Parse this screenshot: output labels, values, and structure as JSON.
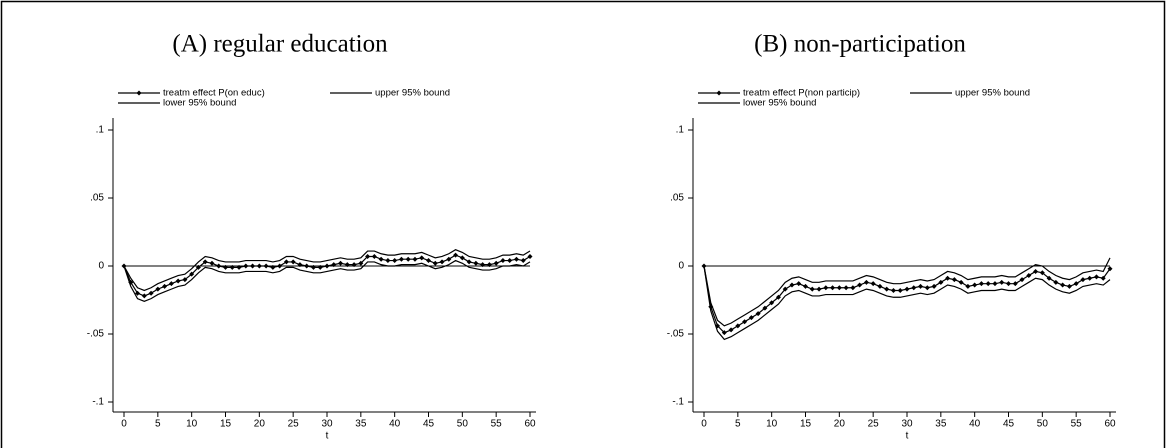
{
  "chart_data": [
    {
      "type": "line",
      "title": "(A) regular education",
      "xlabel": "t",
      "x": [
        0,
        1,
        2,
        3,
        4,
        5,
        6,
        7,
        8,
        9,
        10,
        11,
        12,
        13,
        14,
        15,
        16,
        17,
        18,
        19,
        20,
        21,
        22,
        23,
        24,
        25,
        26,
        27,
        28,
        29,
        30,
        31,
        32,
        33,
        34,
        35,
        36,
        37,
        38,
        39,
        40,
        41,
        42,
        43,
        44,
        45,
        46,
        47,
        48,
        49,
        50,
        51,
        52,
        53,
        54,
        55,
        56,
        57,
        58,
        59,
        60
      ],
      "xlim": [
        0,
        60
      ],
      "xticks": [
        0,
        5,
        10,
        15,
        20,
        25,
        30,
        35,
        40,
        45,
        50,
        55,
        60
      ],
      "ylim": [
        -0.1,
        0.1
      ],
      "yticks": [
        {
          "value": 0.1,
          "label": ".1"
        },
        {
          "value": 0.05,
          "label": ".05"
        },
        0,
        {
          "value": -0.05,
          "label": "-.05"
        },
        {
          "value": -0.1,
          "label": "-.1"
        }
      ],
      "reference_line": 0,
      "series": [
        {
          "name": "treatm effect P(on educ)",
          "color": "#000000",
          "marker": "diamond",
          "values": [
            0,
            -0.012,
            -0.02,
            -0.022,
            -0.02,
            -0.017,
            -0.015,
            -0.013,
            -0.011,
            -0.01,
            -0.006,
            -0.001,
            0.003,
            0.002,
            0,
            -0.001,
            -0.001,
            -0.001,
            0,
            0,
            0,
            0,
            -0.001,
            0,
            0.003,
            0.003,
            0.001,
            0,
            -0.001,
            -0.001,
            0,
            0.001,
            0.002,
            0.001,
            0.001,
            0.002,
            0.007,
            0.007,
            0.005,
            0.004,
            0.004,
            0.005,
            0.005,
            0.005,
            0.006,
            0.004,
            0.002,
            0.003,
            0.005,
            0.008,
            0.006,
            0.003,
            0.002,
            0.001,
            0.001,
            0.002,
            0.004,
            0.004,
            0.005,
            0.004,
            0.007
          ]
        },
        {
          "name": "upper 95% bound",
          "color": "#000000",
          "values": [
            0,
            -0.009,
            -0.016,
            -0.018,
            -0.016,
            -0.013,
            -0.011,
            -0.009,
            -0.007,
            -0.006,
            -0.002,
            0.003,
            0.007,
            0.006,
            0.004,
            0.003,
            0.003,
            0.003,
            0.004,
            0.004,
            0.004,
            0.004,
            0.003,
            0.004,
            0.007,
            0.007,
            0.005,
            0.004,
            0.003,
            0.003,
            0.004,
            0.005,
            0.006,
            0.005,
            0.005,
            0.006,
            0.011,
            0.011,
            0.009,
            0.008,
            0.008,
            0.009,
            0.009,
            0.009,
            0.01,
            0.008,
            0.006,
            0.007,
            0.009,
            0.012,
            0.01,
            0.007,
            0.006,
            0.005,
            0.005,
            0.006,
            0.008,
            0.008,
            0.009,
            0.008,
            0.011
          ]
        },
        {
          "name": "lower 95% bound",
          "color": "#000000",
          "values": [
            0,
            -0.015,
            -0.024,
            -0.026,
            -0.024,
            -0.021,
            -0.019,
            -0.017,
            -0.015,
            -0.014,
            -0.01,
            -0.005,
            -0.001,
            -0.002,
            -0.004,
            -0.005,
            -0.005,
            -0.005,
            -0.004,
            -0.004,
            -0.004,
            -0.004,
            -0.005,
            -0.004,
            -0.001,
            -0.001,
            -0.003,
            -0.004,
            -0.005,
            -0.005,
            -0.004,
            -0.003,
            -0.002,
            -0.003,
            -0.003,
            -0.002,
            0.003,
            0.003,
            0.001,
            0,
            0,
            0.001,
            0.001,
            0.001,
            0.002,
            0,
            -0.002,
            -0.001,
            0.001,
            0.004,
            0.002,
            -0.001,
            -0.002,
            -0.003,
            -0.003,
            -0.002,
            0,
            0,
            0.001,
            0,
            0.003
          ]
        }
      ]
    },
    {
      "type": "line",
      "title": "(B) non-participation",
      "xlabel": "t",
      "x": [
        0,
        1,
        2,
        3,
        4,
        5,
        6,
        7,
        8,
        9,
        10,
        11,
        12,
        13,
        14,
        15,
        16,
        17,
        18,
        19,
        20,
        21,
        22,
        23,
        24,
        25,
        26,
        27,
        28,
        29,
        30,
        31,
        32,
        33,
        34,
        35,
        36,
        37,
        38,
        39,
        40,
        41,
        42,
        43,
        44,
        45,
        46,
        47,
        48,
        49,
        50,
        51,
        52,
        53,
        54,
        55,
        56,
        57,
        58,
        59,
        60
      ],
      "xlim": [
        0,
        60
      ],
      "xticks": [
        0,
        5,
        10,
        15,
        20,
        25,
        30,
        35,
        40,
        45,
        50,
        55,
        60
      ],
      "ylim": [
        -0.1,
        0.1
      ],
      "yticks": [
        {
          "value": 0.1,
          "label": ".1"
        },
        {
          "value": 0.05,
          "label": ".05"
        },
        0,
        {
          "value": -0.05,
          "label": "-.05"
        },
        {
          "value": -0.1,
          "label": "-.1"
        }
      ],
      "reference_line": 0,
      "series": [
        {
          "name": "treatm effect P(non particip)",
          "color": "#000000",
          "marker": "diamond",
          "values": [
            0,
            -0.03,
            -0.044,
            -0.049,
            -0.047,
            -0.044,
            -0.041,
            -0.038,
            -0.035,
            -0.031,
            -0.027,
            -0.023,
            -0.017,
            -0.014,
            -0.013,
            -0.015,
            -0.017,
            -0.017,
            -0.016,
            -0.016,
            -0.016,
            -0.016,
            -0.016,
            -0.014,
            -0.012,
            -0.013,
            -0.015,
            -0.017,
            -0.018,
            -0.018,
            -0.017,
            -0.016,
            -0.015,
            -0.016,
            -0.015,
            -0.012,
            -0.009,
            -0.01,
            -0.012,
            -0.015,
            -0.014,
            -0.013,
            -0.013,
            -0.013,
            -0.012,
            -0.013,
            -0.013,
            -0.01,
            -0.007,
            -0.004,
            -0.005,
            -0.009,
            -0.012,
            -0.014,
            -0.015,
            -0.013,
            -0.01,
            -0.009,
            -0.008,
            -0.009,
            -0.002
          ]
        },
        {
          "name": "upper 95% bound",
          "color": "#000000",
          "values": [
            0,
            -0.027,
            -0.04,
            -0.044,
            -0.042,
            -0.039,
            -0.036,
            -0.033,
            -0.03,
            -0.026,
            -0.022,
            -0.018,
            -0.012,
            -0.009,
            -0.008,
            -0.01,
            -0.012,
            -0.012,
            -0.011,
            -0.011,
            -0.011,
            -0.011,
            -0.011,
            -0.009,
            -0.007,
            -0.008,
            -0.01,
            -0.012,
            -0.013,
            -0.013,
            -0.012,
            -0.011,
            -0.01,
            -0.011,
            -0.01,
            -0.007,
            -0.004,
            -0.005,
            -0.007,
            -0.01,
            -0.009,
            -0.008,
            -0.008,
            -0.008,
            -0.007,
            -0.008,
            -0.008,
            -0.005,
            -0.002,
            0.001,
            0,
            -0.004,
            -0.007,
            -0.009,
            -0.01,
            -0.008,
            -0.005,
            -0.004,
            -0.003,
            -0.004,
            0.006
          ]
        },
        {
          "name": "lower 95% bound",
          "color": "#000000",
          "values": [
            0,
            -0.033,
            -0.048,
            -0.054,
            -0.052,
            -0.049,
            -0.046,
            -0.043,
            -0.04,
            -0.036,
            -0.032,
            -0.028,
            -0.022,
            -0.019,
            -0.018,
            -0.02,
            -0.022,
            -0.022,
            -0.021,
            -0.021,
            -0.021,
            -0.021,
            -0.021,
            -0.019,
            -0.017,
            -0.018,
            -0.02,
            -0.022,
            -0.023,
            -0.023,
            -0.022,
            -0.021,
            -0.02,
            -0.021,
            -0.02,
            -0.017,
            -0.014,
            -0.015,
            -0.017,
            -0.02,
            -0.019,
            -0.018,
            -0.018,
            -0.018,
            -0.017,
            -0.018,
            -0.018,
            -0.015,
            -0.012,
            -0.009,
            -0.01,
            -0.014,
            -0.017,
            -0.019,
            -0.02,
            -0.018,
            -0.015,
            -0.014,
            -0.013,
            -0.014,
            -0.01
          ]
        }
      ]
    }
  ]
}
